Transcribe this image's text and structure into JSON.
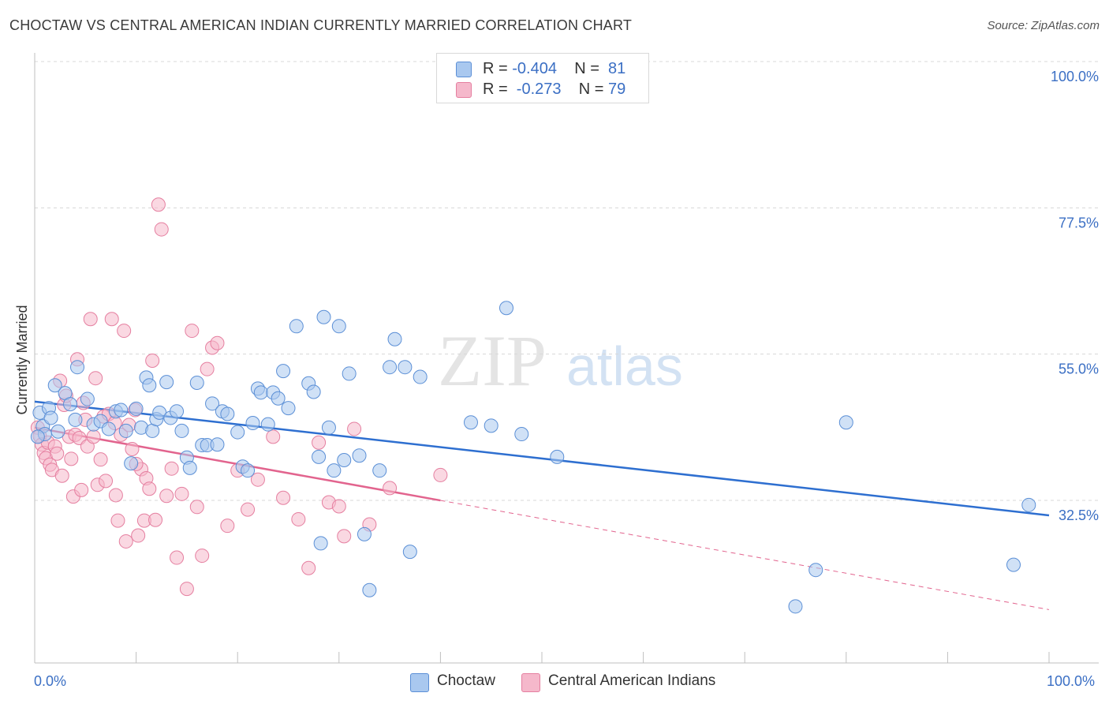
{
  "title": "CHOCTAW VS CENTRAL AMERICAN INDIAN CURRENTLY MARRIED CORRELATION CHART",
  "source": "Source: ZipAtlas.com",
  "watermark": {
    "zip": "ZIP",
    "atlas": "atlas"
  },
  "legend": {
    "rows": [
      {
        "r_label": "R = ",
        "r_value": "-0.404",
        "n_label": "N = ",
        "n_value": "81",
        "color": "#a9c8ef"
      },
      {
        "r_label": "R = ",
        "r_value": " -0.273",
        "n_label": "N = ",
        "n_value": "79",
        "color": "#f5b8cb"
      }
    ]
  },
  "bottom_legend": [
    {
      "label": "Choctaw",
      "color": "#a9c8ef"
    },
    {
      "label": "Central American Indians",
      "color": "#f5b8cb"
    }
  ],
  "colors": {
    "choctaw_fill": "#a9c8ef",
    "choctaw_stroke": "#5b8fd6",
    "choctaw_line": "#2e6fd0",
    "cai_fill": "#f5b8cb",
    "cai_stroke": "#e57fa0",
    "cai_line": "#e2648e",
    "grid": "#d8d8d8",
    "tick_text": "#3b6fc4"
  },
  "chart_data": {
    "type": "scatter",
    "title": "CHOCTAW VS CENTRAL AMERICAN INDIAN CURRENTLY MARRIED CORRELATION CHART",
    "xlabel": "",
    "ylabel": "Currently Married",
    "xlim": [
      0,
      100
    ],
    "ylim": [
      11,
      102
    ],
    "x_tick_labels": [
      "0.0%",
      "100.0%"
    ],
    "y_ticks": [
      {
        "value": 100,
        "label": "100.0%"
      },
      {
        "value": 77.5,
        "label": "77.5%"
      },
      {
        "value": 55,
        "label": "55.0%"
      },
      {
        "value": 32.5,
        "label": "32.5%"
      }
    ],
    "grid": true,
    "legend_position": "top-center",
    "series": [
      {
        "name": "Choctaw",
        "trend": {
          "x": [
            0,
            100
          ],
          "y": [
            50.0,
            32.5
          ],
          "dashed_from": null
        },
        "points": [
          [
            0.5,
            48.3
          ],
          [
            0.8,
            46.2
          ],
          [
            1.0,
            45.0
          ],
          [
            1.4,
            49.0
          ],
          [
            1.6,
            47.5
          ],
          [
            2.0,
            52.5
          ],
          [
            2.3,
            45.4
          ],
          [
            3.0,
            51.3
          ],
          [
            3.5,
            49.6
          ],
          [
            4.0,
            47.2
          ],
          [
            4.2,
            55.3
          ],
          [
            5.2,
            50.4
          ],
          [
            5.8,
            46.5
          ],
          [
            6.5,
            47.0
          ],
          [
            7.3,
            45.8
          ],
          [
            8.0,
            48.5
          ],
          [
            8.5,
            48.7
          ],
          [
            9.0,
            45.5
          ],
          [
            9.5,
            40.5
          ],
          [
            10.0,
            48.9
          ],
          [
            10.5,
            46.0
          ],
          [
            11.0,
            53.7
          ],
          [
            11.3,
            52.5
          ],
          [
            11.6,
            45.5
          ],
          [
            12.0,
            47.3
          ],
          [
            12.3,
            48.3
          ],
          [
            13.0,
            53.0
          ],
          [
            13.4,
            47.5
          ],
          [
            14.0,
            48.5
          ],
          [
            14.5,
            45.5
          ],
          [
            15.0,
            41.4
          ],
          [
            15.3,
            39.8
          ],
          [
            16.0,
            52.9
          ],
          [
            16.5,
            43.3
          ],
          [
            17.0,
            43.3
          ],
          [
            17.5,
            49.7
          ],
          [
            18.0,
            43.4
          ],
          [
            18.5,
            48.5
          ],
          [
            19.0,
            48.1
          ],
          [
            20.0,
            45.3
          ],
          [
            20.5,
            40.0
          ],
          [
            21.0,
            39.4
          ],
          [
            21.5,
            46.7
          ],
          [
            22.0,
            52.0
          ],
          [
            22.3,
            51.4
          ],
          [
            23.0,
            46.5
          ],
          [
            23.5,
            51.4
          ],
          [
            24.0,
            50.5
          ],
          [
            24.5,
            54.7
          ],
          [
            25.0,
            49.0
          ],
          [
            25.8,
            61.6
          ],
          [
            27.0,
            52.8
          ],
          [
            27.5,
            51.5
          ],
          [
            28.0,
            41.5
          ],
          [
            28.2,
            28.2
          ],
          [
            28.5,
            63.0
          ],
          [
            29.0,
            46.0
          ],
          [
            29.5,
            39.4
          ],
          [
            30.0,
            61.6
          ],
          [
            30.5,
            41.0
          ],
          [
            31.0,
            54.3
          ],
          [
            32.0,
            41.7
          ],
          [
            32.5,
            29.6
          ],
          [
            33.0,
            21.0
          ],
          [
            34.0,
            39.4
          ],
          [
            35.0,
            55.3
          ],
          [
            35.5,
            59.6
          ],
          [
            36.5,
            55.3
          ],
          [
            37.0,
            26.9
          ],
          [
            38.0,
            53.8
          ],
          [
            43.0,
            46.8
          ],
          [
            45.0,
            46.3
          ],
          [
            46.5,
            64.4
          ],
          [
            48.0,
            45.0
          ],
          [
            51.5,
            41.5
          ],
          [
            75.0,
            18.5
          ],
          [
            77.0,
            24.1
          ],
          [
            80.0,
            46.8
          ],
          [
            96.5,
            24.9
          ],
          [
            98.0,
            34.1
          ],
          [
            0.3,
            44.6
          ]
        ]
      },
      {
        "name": "Central American Indians",
        "trend": {
          "x": [
            0,
            100
          ],
          "y": [
            46.0,
            18.0
          ],
          "dashed_from": 40
        },
        "points": [
          [
            0.3,
            46.0
          ],
          [
            0.5,
            44.7
          ],
          [
            0.7,
            43.4
          ],
          [
            0.9,
            42.1
          ],
          [
            1.1,
            41.3
          ],
          [
            1.3,
            43.7
          ],
          [
            1.5,
            40.3
          ],
          [
            1.7,
            39.5
          ],
          [
            2.0,
            43.1
          ],
          [
            2.2,
            42.0
          ],
          [
            2.5,
            53.2
          ],
          [
            2.7,
            38.6
          ],
          [
            2.9,
            49.5
          ],
          [
            3.1,
            50.9
          ],
          [
            3.4,
            44.6
          ],
          [
            3.6,
            41.2
          ],
          [
            3.8,
            35.4
          ],
          [
            4.0,
            44.9
          ],
          [
            4.2,
            56.5
          ],
          [
            4.4,
            44.4
          ],
          [
            4.6,
            36.4
          ],
          [
            4.8,
            49.8
          ],
          [
            5.0,
            47.2
          ],
          [
            5.2,
            43.1
          ],
          [
            5.5,
            62.7
          ],
          [
            5.8,
            44.6
          ],
          [
            6.0,
            53.6
          ],
          [
            6.2,
            37.2
          ],
          [
            6.5,
            41.1
          ],
          [
            6.8,
            47.7
          ],
          [
            7.0,
            37.8
          ],
          [
            7.3,
            48.1
          ],
          [
            7.6,
            62.7
          ],
          [
            7.9,
            46.7
          ],
          [
            8.2,
            31.7
          ],
          [
            8.5,
            44.9
          ],
          [
            8.8,
            60.9
          ],
          [
            9.0,
            28.5
          ],
          [
            9.3,
            46.4
          ],
          [
            9.6,
            42.7
          ],
          [
            9.9,
            48.7
          ],
          [
            10.2,
            29.4
          ],
          [
            10.5,
            39.6
          ],
          [
            10.8,
            31.7
          ],
          [
            11.0,
            38.2
          ],
          [
            11.3,
            36.6
          ],
          [
            11.6,
            56.3
          ],
          [
            11.9,
            31.8
          ],
          [
            12.2,
            80.3
          ],
          [
            12.5,
            76.5
          ],
          [
            13.0,
            35.5
          ],
          [
            13.5,
            39.7
          ],
          [
            14.0,
            26.0
          ],
          [
            14.5,
            35.8
          ],
          [
            15.0,
            21.2
          ],
          [
            15.5,
            60.9
          ],
          [
            16.0,
            33.8
          ],
          [
            16.5,
            26.3
          ],
          [
            17.0,
            55.0
          ],
          [
            17.5,
            58.3
          ],
          [
            18.0,
            59.0
          ],
          [
            19.0,
            30.9
          ],
          [
            20.0,
            39.4
          ],
          [
            21.0,
            33.4
          ],
          [
            22.0,
            38.0
          ],
          [
            23.5,
            44.6
          ],
          [
            24.5,
            35.2
          ],
          [
            26.0,
            31.9
          ],
          [
            27.0,
            24.4
          ],
          [
            28.0,
            43.7
          ],
          [
            29.0,
            34.5
          ],
          [
            30.0,
            33.9
          ],
          [
            30.5,
            29.3
          ],
          [
            31.5,
            45.8
          ],
          [
            33.0,
            31.1
          ],
          [
            35.0,
            36.7
          ],
          [
            40.0,
            38.7
          ],
          [
            10.0,
            40.4
          ],
          [
            8.0,
            35.6
          ]
        ]
      }
    ]
  }
}
